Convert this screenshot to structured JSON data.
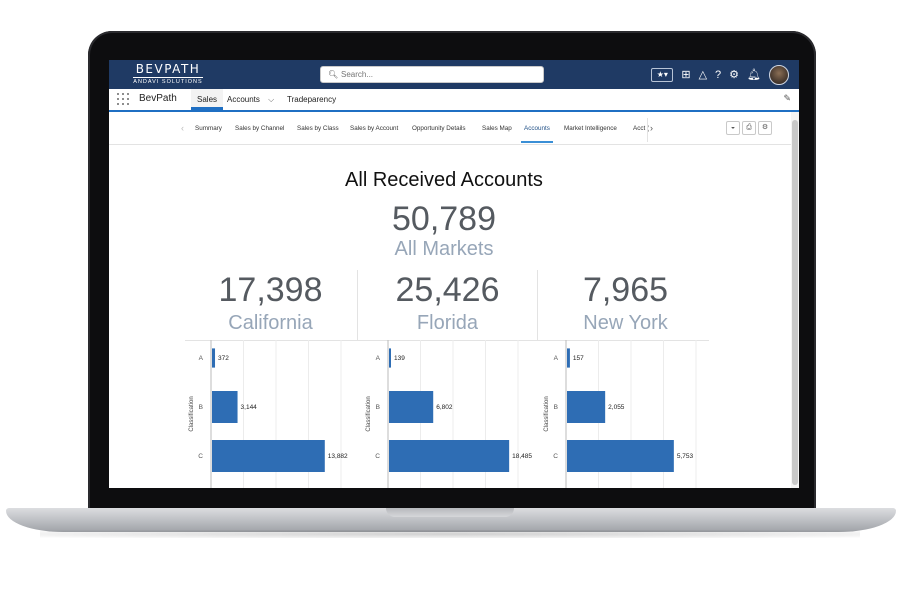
{
  "topbar": {
    "logo_line1": "BEVPATH",
    "logo_line2": "ANDAVI SOLUTIONS",
    "search_placeholder": "Search...",
    "icons": [
      "favorites-star-icon",
      "add-icon",
      "trailhead-icon",
      "help-icon",
      "setup-gear-icon",
      "notifications-bell-icon"
    ]
  },
  "navbar": {
    "app_name": "BevPath",
    "tabs": [
      {
        "label": "Sales",
        "active": true
      },
      {
        "label": "Accounts",
        "dropdown": true
      },
      {
        "label": "Tradeparency"
      }
    ]
  },
  "dashboard_tabs": [
    {
      "label": "Summary"
    },
    {
      "label": "Sales by Channel"
    },
    {
      "label": "Sales by Class"
    },
    {
      "label": "Sales by Account"
    },
    {
      "label": "Opportunity Details"
    },
    {
      "label": "Sales Map"
    },
    {
      "label": "Accounts",
      "active": true
    },
    {
      "label": "Market Intelligence"
    },
    {
      "label": "Acct ("
    }
  ],
  "summary": {
    "title": "All Received Accounts",
    "total": "50,789",
    "total_label": "All Markets"
  },
  "states": [
    {
      "value": "17,398",
      "name": "California"
    },
    {
      "value": "25,426",
      "name": "Florida"
    },
    {
      "value": "7,965",
      "name": "New York"
    }
  ],
  "chart_data": [
    {
      "type": "bar",
      "orientation": "horizontal",
      "ylabel": "Classification",
      "categories": [
        "A",
        "B",
        "C"
      ],
      "values": [
        372,
        3144,
        13882
      ],
      "value_labels": [
        "372",
        "3,144",
        "13,882"
      ],
      "color": "#2e6db4",
      "xlim": [
        0,
        16000
      ]
    },
    {
      "type": "bar",
      "orientation": "horizontal",
      "ylabel": "Classification",
      "categories": [
        "A",
        "B",
        "C"
      ],
      "values": [
        139,
        6802,
        18485
      ],
      "value_labels": [
        "139",
        "6,802",
        "18,485"
      ],
      "color": "#2e6db4",
      "xlim": [
        0,
        20000
      ]
    },
    {
      "type": "bar",
      "orientation": "horizontal",
      "ylabel": "Classification",
      "categories": [
        "A",
        "B",
        "C"
      ],
      "values": [
        157,
        2055,
        5753
      ],
      "value_labels": [
        "157",
        "2,055",
        "5,753"
      ],
      "color": "#2e6db4",
      "xlim": [
        0,
        7000
      ]
    }
  ]
}
